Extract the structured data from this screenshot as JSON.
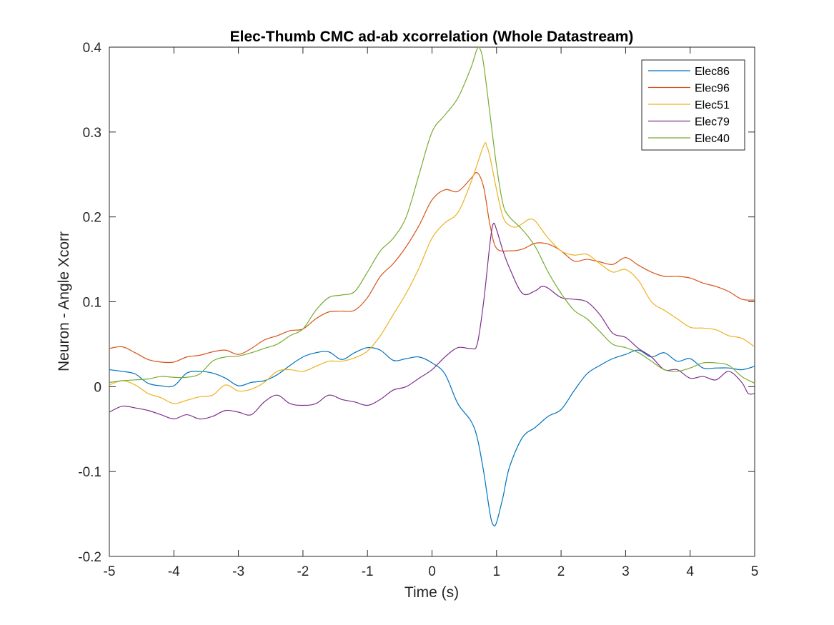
{
  "chart_data": {
    "type": "line",
    "title": "Elec-Thumb CMC ad-ab xcorrelation (Whole Datastream)",
    "xlabel": "Time (s)",
    "ylabel": "Neuron - Angle Xcorr",
    "xlim": [
      -5,
      5
    ],
    "ylim": [
      -0.2,
      0.4
    ],
    "xticks": [
      -5,
      -4,
      -3,
      -2,
      -1,
      0,
      1,
      2,
      3,
      4,
      5
    ],
    "yticks": [
      -0.2,
      -0.1,
      0,
      0.1,
      0.2,
      0.3,
      0.4
    ],
    "xtick_labels": [
      "-5",
      "-4",
      "-3",
      "-2",
      "-1",
      "0",
      "1",
      "2",
      "3",
      "4",
      "5"
    ],
    "ytick_labels": [
      "-0.2",
      "-0.1",
      "0",
      "0.1",
      "0.2",
      "0.3",
      "0.4"
    ],
    "grid": false,
    "legend_position": "top-right",
    "series": [
      {
        "name": "Elec86",
        "color": "#0072BD",
        "points": [
          [
            -5,
            0.02
          ],
          [
            -4.8,
            0.018
          ],
          [
            -4.6,
            0.015
          ],
          [
            -4.4,
            0.004
          ],
          [
            -4.2,
            0.001
          ],
          [
            -4.0,
            0.001
          ],
          [
            -3.8,
            0.016
          ],
          [
            -3.6,
            0.018
          ],
          [
            -3.4,
            0.016
          ],
          [
            -3.2,
            0.01
          ],
          [
            -3.0,
            0.001
          ],
          [
            -2.8,
            0.005
          ],
          [
            -2.6,
            0.007
          ],
          [
            -2.4,
            0.014
          ],
          [
            -2.2,
            0.025
          ],
          [
            -2.0,
            0.035
          ],
          [
            -1.8,
            0.04
          ],
          [
            -1.6,
            0.041
          ],
          [
            -1.4,
            0.032
          ],
          [
            -1.2,
            0.04
          ],
          [
            -1.0,
            0.046
          ],
          [
            -0.8,
            0.043
          ],
          [
            -0.6,
            0.031
          ],
          [
            -0.4,
            0.033
          ],
          [
            -0.2,
            0.035
          ],
          [
            0.0,
            0.028
          ],
          [
            0.2,
            0.015
          ],
          [
            0.4,
            -0.02
          ],
          [
            0.6,
            -0.04
          ],
          [
            0.7,
            -0.06
          ],
          [
            0.8,
            -0.1
          ],
          [
            0.9,
            -0.15
          ],
          [
            0.95,
            -0.163
          ],
          [
            1.0,
            -0.16
          ],
          [
            1.1,
            -0.13
          ],
          [
            1.2,
            -0.095
          ],
          [
            1.4,
            -0.06
          ],
          [
            1.6,
            -0.048
          ],
          [
            1.8,
            -0.035
          ],
          [
            2.0,
            -0.027
          ],
          [
            2.2,
            -0.005
          ],
          [
            2.4,
            0.015
          ],
          [
            2.6,
            0.025
          ],
          [
            2.8,
            0.033
          ],
          [
            3.0,
            0.038
          ],
          [
            3.2,
            0.043
          ],
          [
            3.4,
            0.035
          ],
          [
            3.6,
            0.04
          ],
          [
            3.8,
            0.03
          ],
          [
            4.0,
            0.033
          ],
          [
            4.2,
            0.022
          ],
          [
            4.4,
            0.022
          ],
          [
            4.6,
            0.022
          ],
          [
            4.8,
            0.02
          ],
          [
            5.0,
            0.024
          ]
        ]
      },
      {
        "name": "Elec96",
        "color": "#D95319",
        "points": [
          [
            -5,
            0.045
          ],
          [
            -4.8,
            0.047
          ],
          [
            -4.6,
            0.04
          ],
          [
            -4.4,
            0.032
          ],
          [
            -4.2,
            0.029
          ],
          [
            -4.0,
            0.029
          ],
          [
            -3.8,
            0.035
          ],
          [
            -3.6,
            0.037
          ],
          [
            -3.4,
            0.041
          ],
          [
            -3.2,
            0.043
          ],
          [
            -3.0,
            0.038
          ],
          [
            -2.8,
            0.045
          ],
          [
            -2.6,
            0.055
          ],
          [
            -2.4,
            0.06
          ],
          [
            -2.2,
            0.066
          ],
          [
            -2.0,
            0.068
          ],
          [
            -1.8,
            0.08
          ],
          [
            -1.6,
            0.088
          ],
          [
            -1.4,
            0.089
          ],
          [
            -1.2,
            0.09
          ],
          [
            -1.0,
            0.105
          ],
          [
            -0.8,
            0.13
          ],
          [
            -0.6,
            0.145
          ],
          [
            -0.4,
            0.165
          ],
          [
            -0.2,
            0.19
          ],
          [
            0.0,
            0.22
          ],
          [
            0.2,
            0.232
          ],
          [
            0.4,
            0.23
          ],
          [
            0.6,
            0.245
          ],
          [
            0.7,
            0.252
          ],
          [
            0.8,
            0.235
          ],
          [
            0.9,
            0.19
          ],
          [
            1.0,
            0.163
          ],
          [
            1.2,
            0.16
          ],
          [
            1.4,
            0.162
          ],
          [
            1.6,
            0.169
          ],
          [
            1.8,
            0.168
          ],
          [
            2.0,
            0.16
          ],
          [
            2.2,
            0.148
          ],
          [
            2.4,
            0.15
          ],
          [
            2.6,
            0.147
          ],
          [
            2.8,
            0.144
          ],
          [
            3.0,
            0.152
          ],
          [
            3.2,
            0.143
          ],
          [
            3.4,
            0.135
          ],
          [
            3.6,
            0.13
          ],
          [
            3.8,
            0.13
          ],
          [
            4.0,
            0.128
          ],
          [
            4.2,
            0.122
          ],
          [
            4.4,
            0.118
          ],
          [
            4.6,
            0.112
          ],
          [
            4.8,
            0.103
          ],
          [
            5.0,
            0.102
          ]
        ]
      },
      {
        "name": "Elec51",
        "color": "#EDB120",
        "points": [
          [
            -5,
            0.002
          ],
          [
            -4.8,
            0.007
          ],
          [
            -4.6,
            0.002
          ],
          [
            -4.4,
            -0.008
          ],
          [
            -4.2,
            -0.013
          ],
          [
            -4.0,
            -0.02
          ],
          [
            -3.8,
            -0.016
          ],
          [
            -3.6,
            -0.012
          ],
          [
            -3.4,
            -0.01
          ],
          [
            -3.2,
            0.002
          ],
          [
            -3.0,
            -0.005
          ],
          [
            -2.8,
            -0.003
          ],
          [
            -2.6,
            0.005
          ],
          [
            -2.4,
            0.018
          ],
          [
            -2.2,
            0.02
          ],
          [
            -2.0,
            0.018
          ],
          [
            -1.8,
            0.024
          ],
          [
            -1.6,
            0.03
          ],
          [
            -1.4,
            0.03
          ],
          [
            -1.2,
            0.034
          ],
          [
            -1.0,
            0.042
          ],
          [
            -0.8,
            0.06
          ],
          [
            -0.6,
            0.085
          ],
          [
            -0.4,
            0.11
          ],
          [
            -0.2,
            0.14
          ],
          [
            0.0,
            0.175
          ],
          [
            0.2,
            0.193
          ],
          [
            0.4,
            0.205
          ],
          [
            0.6,
            0.24
          ],
          [
            0.8,
            0.284
          ],
          [
            0.85,
            0.283
          ],
          [
            0.9,
            0.27
          ],
          [
            1.0,
            0.232
          ],
          [
            1.1,
            0.2
          ],
          [
            1.2,
            0.19
          ],
          [
            1.3,
            0.188
          ],
          [
            1.4,
            0.192
          ],
          [
            1.5,
            0.197
          ],
          [
            1.6,
            0.195
          ],
          [
            1.8,
            0.175
          ],
          [
            2.0,
            0.16
          ],
          [
            2.2,
            0.155
          ],
          [
            2.4,
            0.156
          ],
          [
            2.6,
            0.145
          ],
          [
            2.8,
            0.135
          ],
          [
            3.0,
            0.138
          ],
          [
            3.2,
            0.125
          ],
          [
            3.4,
            0.1
          ],
          [
            3.6,
            0.09
          ],
          [
            3.8,
            0.08
          ],
          [
            4.0,
            0.07
          ],
          [
            4.2,
            0.069
          ],
          [
            4.4,
            0.067
          ],
          [
            4.6,
            0.06
          ],
          [
            4.8,
            0.057
          ],
          [
            5.0,
            0.047
          ]
        ]
      },
      {
        "name": "Elec79",
        "color": "#7E2F8E",
        "points": [
          [
            -5,
            -0.03
          ],
          [
            -4.8,
            -0.023
          ],
          [
            -4.6,
            -0.025
          ],
          [
            -4.4,
            -0.028
          ],
          [
            -4.2,
            -0.033
          ],
          [
            -4.0,
            -0.038
          ],
          [
            -3.8,
            -0.033
          ],
          [
            -3.6,
            -0.038
          ],
          [
            -3.4,
            -0.035
          ],
          [
            -3.2,
            -0.028
          ],
          [
            -3.0,
            -0.03
          ],
          [
            -2.8,
            -0.033
          ],
          [
            -2.6,
            -0.018
          ],
          [
            -2.4,
            -0.01
          ],
          [
            -2.2,
            -0.02
          ],
          [
            -2.0,
            -0.022
          ],
          [
            -1.8,
            -0.02
          ],
          [
            -1.6,
            -0.01
          ],
          [
            -1.4,
            -0.015
          ],
          [
            -1.2,
            -0.018
          ],
          [
            -1.0,
            -0.022
          ],
          [
            -0.8,
            -0.015
          ],
          [
            -0.6,
            -0.004
          ],
          [
            -0.4,
            0.0
          ],
          [
            -0.2,
            0.01
          ],
          [
            0.0,
            0.02
          ],
          [
            0.2,
            0.035
          ],
          [
            0.4,
            0.046
          ],
          [
            0.6,
            0.045
          ],
          [
            0.7,
            0.05
          ],
          [
            0.8,
            0.1
          ],
          [
            0.9,
            0.17
          ],
          [
            0.95,
            0.192
          ],
          [
            1.0,
            0.185
          ],
          [
            1.1,
            0.16
          ],
          [
            1.2,
            0.14
          ],
          [
            1.4,
            0.11
          ],
          [
            1.6,
            0.113
          ],
          [
            1.7,
            0.118
          ],
          [
            1.8,
            0.116
          ],
          [
            2.0,
            0.105
          ],
          [
            2.2,
            0.103
          ],
          [
            2.4,
            0.1
          ],
          [
            2.6,
            0.085
          ],
          [
            2.8,
            0.063
          ],
          [
            3.0,
            0.058
          ],
          [
            3.2,
            0.045
          ],
          [
            3.4,
            0.035
          ],
          [
            3.6,
            0.02
          ],
          [
            3.8,
            0.02
          ],
          [
            4.0,
            0.01
          ],
          [
            4.2,
            0.012
          ],
          [
            4.4,
            0.008
          ],
          [
            4.6,
            0.018
          ],
          [
            4.8,
            0.005
          ],
          [
            4.9,
            -0.008
          ],
          [
            5.0,
            -0.008
          ]
        ]
      },
      {
        "name": "Elec40",
        "color": "#77AC30",
        "points": [
          [
            -5,
            0.005
          ],
          [
            -4.8,
            0.007
          ],
          [
            -4.6,
            0.008
          ],
          [
            -4.4,
            0.009
          ],
          [
            -4.2,
            0.012
          ],
          [
            -4.0,
            0.011
          ],
          [
            -3.8,
            0.011
          ],
          [
            -3.6,
            0.015
          ],
          [
            -3.4,
            0.03
          ],
          [
            -3.2,
            0.035
          ],
          [
            -3.0,
            0.036
          ],
          [
            -2.8,
            0.04
          ],
          [
            -2.6,
            0.045
          ],
          [
            -2.4,
            0.05
          ],
          [
            -2.2,
            0.06
          ],
          [
            -2.0,
            0.068
          ],
          [
            -1.8,
            0.09
          ],
          [
            -1.6,
            0.105
          ],
          [
            -1.4,
            0.108
          ],
          [
            -1.2,
            0.112
          ],
          [
            -1.0,
            0.135
          ],
          [
            -0.8,
            0.16
          ],
          [
            -0.6,
            0.175
          ],
          [
            -0.4,
            0.2
          ],
          [
            -0.2,
            0.25
          ],
          [
            0.0,
            0.3
          ],
          [
            0.2,
            0.32
          ],
          [
            0.4,
            0.34
          ],
          [
            0.6,
            0.375
          ],
          [
            0.7,
            0.398
          ],
          [
            0.75,
            0.397
          ],
          [
            0.8,
            0.38
          ],
          [
            0.9,
            0.32
          ],
          [
            1.0,
            0.26
          ],
          [
            1.1,
            0.215
          ],
          [
            1.2,
            0.2
          ],
          [
            1.4,
            0.185
          ],
          [
            1.6,
            0.165
          ],
          [
            1.8,
            0.135
          ],
          [
            2.0,
            0.11
          ],
          [
            2.2,
            0.09
          ],
          [
            2.4,
            0.08
          ],
          [
            2.6,
            0.065
          ],
          [
            2.8,
            0.05
          ],
          [
            3.0,
            0.046
          ],
          [
            3.2,
            0.04
          ],
          [
            3.4,
            0.03
          ],
          [
            3.6,
            0.02
          ],
          [
            3.8,
            0.018
          ],
          [
            4.0,
            0.022
          ],
          [
            4.2,
            0.028
          ],
          [
            4.4,
            0.028
          ],
          [
            4.6,
            0.025
          ],
          [
            4.8,
            0.012
          ],
          [
            5.0,
            0.004
          ]
        ]
      }
    ]
  }
}
